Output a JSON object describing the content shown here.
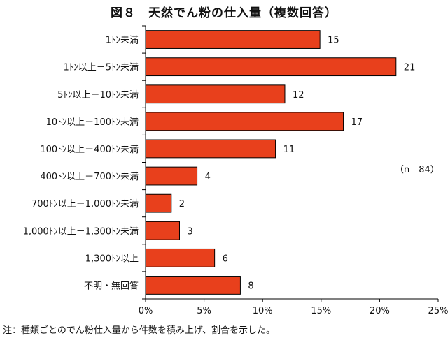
{
  "chart_data": {
    "type": "bar",
    "orientation": "horizontal",
    "title": "図８　天然でん粉の仕入量（複数回答）",
    "note": "注：種類ごとのでん粉仕入量から件数を積み上げ、割合を示した。",
    "n_label": "（n＝84）",
    "categories": [
      "1ﾄﾝ未満",
      "1ﾄﾝ以上－5ﾄﾝ未満",
      "5ﾄﾝ以上－10ﾄﾝ未満",
      "10ﾄﾝ以上－100ﾄﾝ未満",
      "100ﾄﾝ以上－400ﾄﾝ未満",
      "400ﾄﾝ以上－700ﾄﾝ未満",
      "700ﾄﾝ以上－1,000ﾄﾝ未満",
      "1,000ﾄﾝ以上－1,300ﾄﾝ未満",
      "1,300ﾄﾝ以上",
      "不明・無回答"
    ],
    "values": [
      14.9,
      21.4,
      11.9,
      16.9,
      11.1,
      4.4,
      2.2,
      2.9,
      5.9,
      8.1
    ],
    "data_labels": [
      "15",
      "21",
      "12",
      "17",
      "11",
      "4",
      "2",
      "3",
      "6",
      "8"
    ],
    "xlim": [
      0,
      25
    ],
    "xticks": [
      0,
      5,
      10,
      15,
      20,
      25
    ],
    "xtick_labels": [
      "0%",
      "5%",
      "10%",
      "15%",
      "20%",
      "25%"
    ],
    "bar_color": "#e8401c",
    "grid": false
  }
}
